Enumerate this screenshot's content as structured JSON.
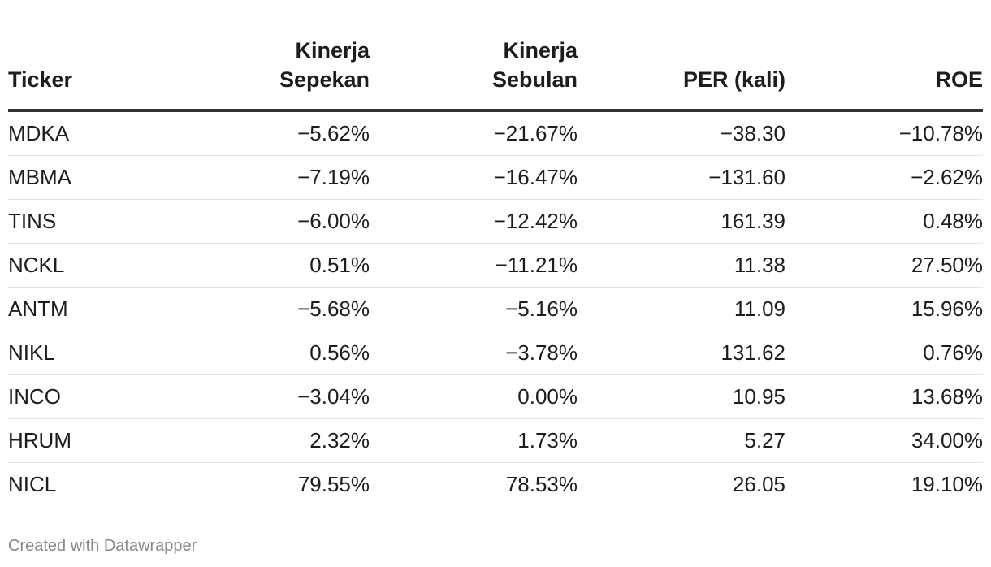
{
  "chart_data": {
    "type": "table",
    "columns": [
      "Ticker",
      "Kinerja Sepekan",
      "Kinerja Sebulan",
      "PER (kali)",
      "ROE"
    ],
    "header_lines": [
      [
        "",
        "Ticker"
      ],
      [
        "Kinerja",
        "Sepekan"
      ],
      [
        "Kinerja",
        "Sebulan"
      ],
      [
        "",
        "PER (kali)"
      ],
      [
        "",
        "ROE"
      ]
    ],
    "rows": [
      [
        "MDKA",
        "−5.62%",
        "−21.67%",
        "−38.30",
        "−10.78%"
      ],
      [
        "MBMA",
        "−7.19%",
        "−16.47%",
        "−131.60",
        "−2.62%"
      ],
      [
        "TINS",
        "−6.00%",
        "−12.42%",
        "161.39",
        "0.48%"
      ],
      [
        "NCKL",
        "0.51%",
        "−11.21%",
        "11.38",
        "27.50%"
      ],
      [
        "ANTM",
        "−5.68%",
        "−5.16%",
        "11.09",
        "15.96%"
      ],
      [
        "NIKL",
        "0.56%",
        "−3.78%",
        "131.62",
        "0.76%"
      ],
      [
        "INCO",
        "−3.04%",
        "0.00%",
        "10.95",
        "13.68%"
      ],
      [
        "HRUM",
        "2.32%",
        "1.73%",
        "5.27",
        "34.00%"
      ],
      [
        "NICL",
        "79.55%",
        "78.53%",
        "26.05",
        "19.10%"
      ]
    ]
  },
  "footer": {
    "credit": "Created with Datawrapper"
  },
  "colors": {
    "text": "#1d1d1d",
    "header_rule": "#333333",
    "row_rule": "#e3e3e3",
    "footer_text": "#888888"
  }
}
